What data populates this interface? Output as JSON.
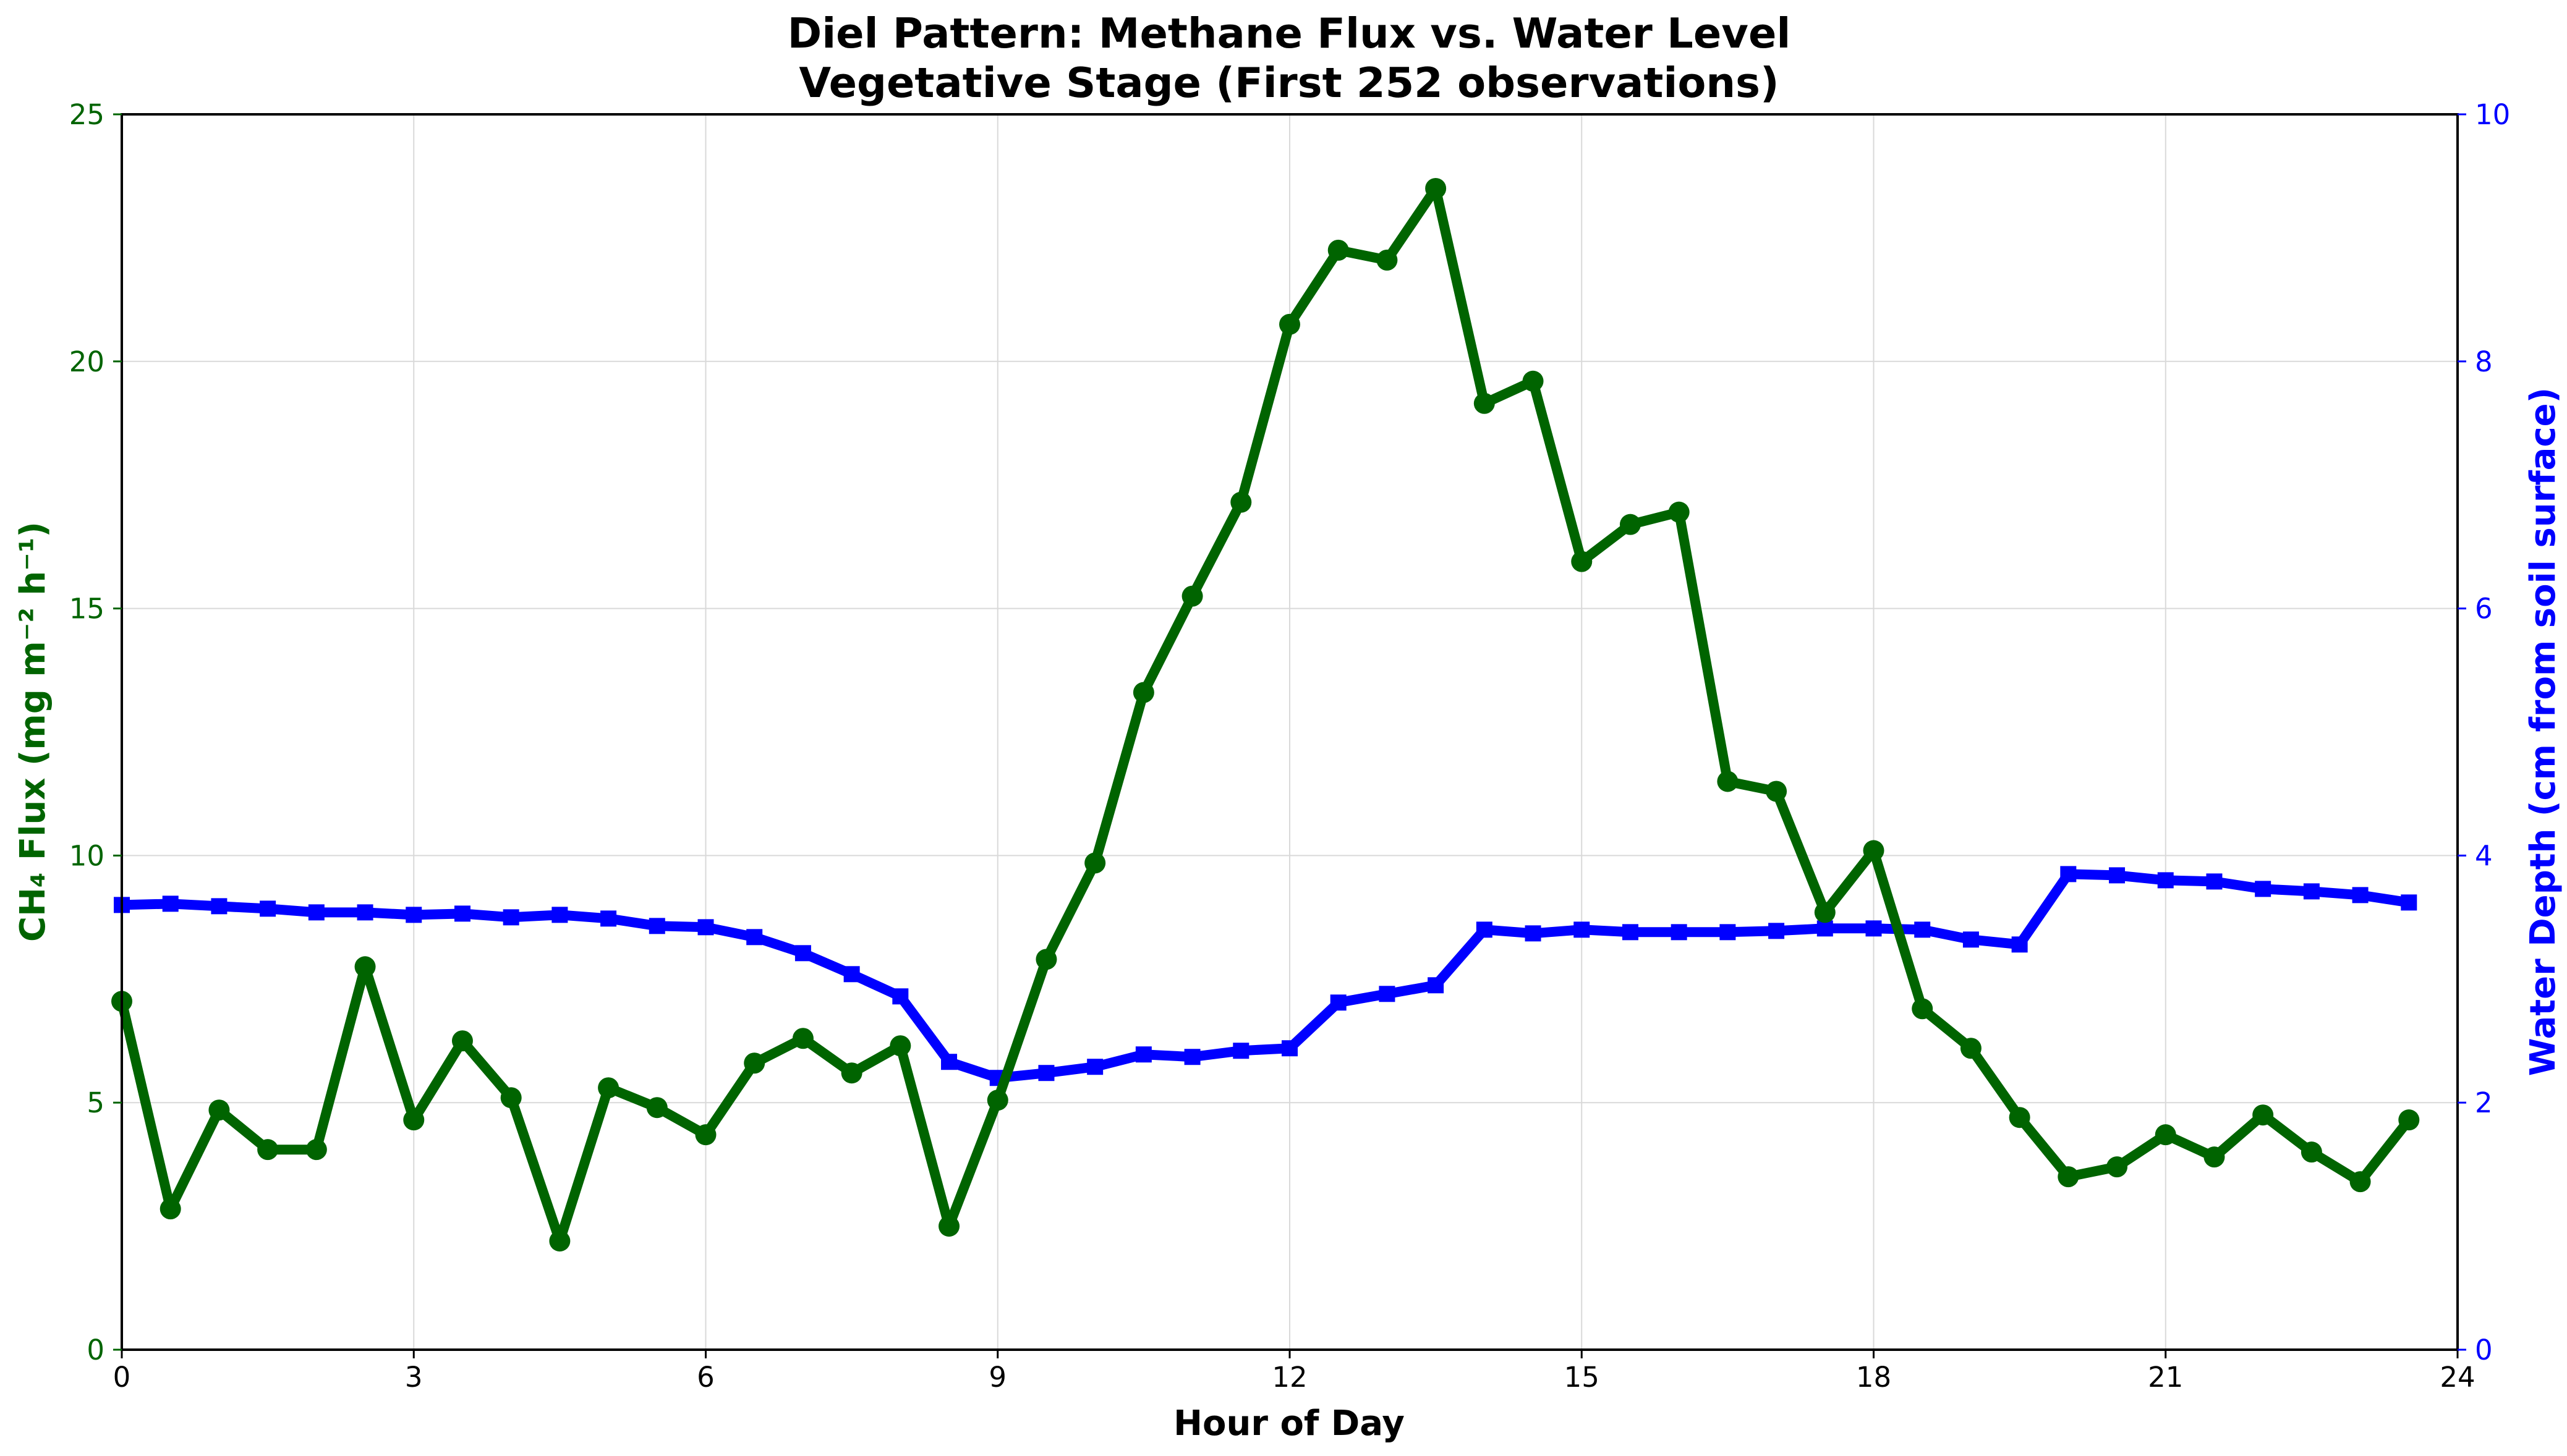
{
  "chart_data": {
    "type": "line",
    "title": "Diel Pattern: Methane Flux vs. Water Level",
    "subtitle": "Vegetative Stage (First 252 observations)",
    "xlabel": "Hour of Day",
    "ylabel_left": "CH₄ Flux (mg m⁻² h⁻¹)",
    "ylabel_right": "Water Depth (cm from soil surface)",
    "xlim": [
      0,
      24
    ],
    "ylim_left": [
      0,
      25
    ],
    "ylim_right": [
      0,
      10
    ],
    "xticks": [
      "0",
      "3",
      "6",
      "9",
      "12",
      "15",
      "18",
      "21",
      "24"
    ],
    "yticks_left": [
      "0",
      "5",
      "10",
      "15",
      "20",
      "25"
    ],
    "yticks_right": [
      "0",
      "2",
      "4",
      "6",
      "8",
      "10"
    ],
    "grid": true,
    "x": [
      0,
      0.5,
      1,
      1.5,
      2,
      2.5,
      3,
      3.5,
      4,
      4.5,
      5,
      5.5,
      6,
      6.5,
      7,
      7.5,
      8,
      8.5,
      9,
      9.5,
      10,
      10.5,
      11,
      11.5,
      12,
      12.5,
      13,
      13.5,
      14,
      14.5,
      15,
      15.5,
      16,
      16.5,
      17,
      17.5,
      18,
      18.5,
      19,
      19.5,
      20,
      20.5,
      21,
      21.5,
      22,
      22.5,
      23,
      23.5
    ],
    "series": [
      {
        "axis": "left",
        "color": "#006400",
        "marker": "circle",
        "values": [
          7.05,
          2.85,
          4.85,
          4.05,
          4.05,
          7.75,
          4.65,
          6.25,
          5.1,
          2.2,
          5.3,
          4.9,
          4.35,
          5.8,
          6.3,
          5.6,
          6.15,
          2.5,
          5.05,
          7.9,
          9.85,
          13.3,
          15.25,
          17.15,
          20.75,
          22.25,
          22.05,
          23.5,
          19.15,
          19.6,
          15.95,
          16.7,
          16.95,
          11.5,
          11.3,
          8.85,
          10.1,
          6.9,
          6.1,
          4.7,
          3.5,
          3.7,
          4.35,
          3.9,
          4.75,
          4.0,
          3.4,
          4.65
        ]
      },
      {
        "axis": "right",
        "color": "#0000ff",
        "marker": "square",
        "values": [
          3.6,
          3.61,
          3.59,
          3.57,
          3.54,
          3.54,
          3.52,
          3.53,
          3.5,
          3.52,
          3.49,
          3.43,
          3.42,
          3.34,
          3.21,
          3.04,
          2.86,
          2.33,
          2.2,
          2.24,
          2.29,
          2.39,
          2.37,
          2.42,
          2.44,
          2.81,
          2.88,
          2.95,
          3.4,
          3.37,
          3.4,
          3.38,
          3.38,
          3.38,
          3.39,
          3.41,
          3.41,
          3.4,
          3.32,
          3.28,
          3.85,
          3.84,
          3.8,
          3.79,
          3.73,
          3.71,
          3.68,
          3.62
        ]
      }
    ]
  }
}
